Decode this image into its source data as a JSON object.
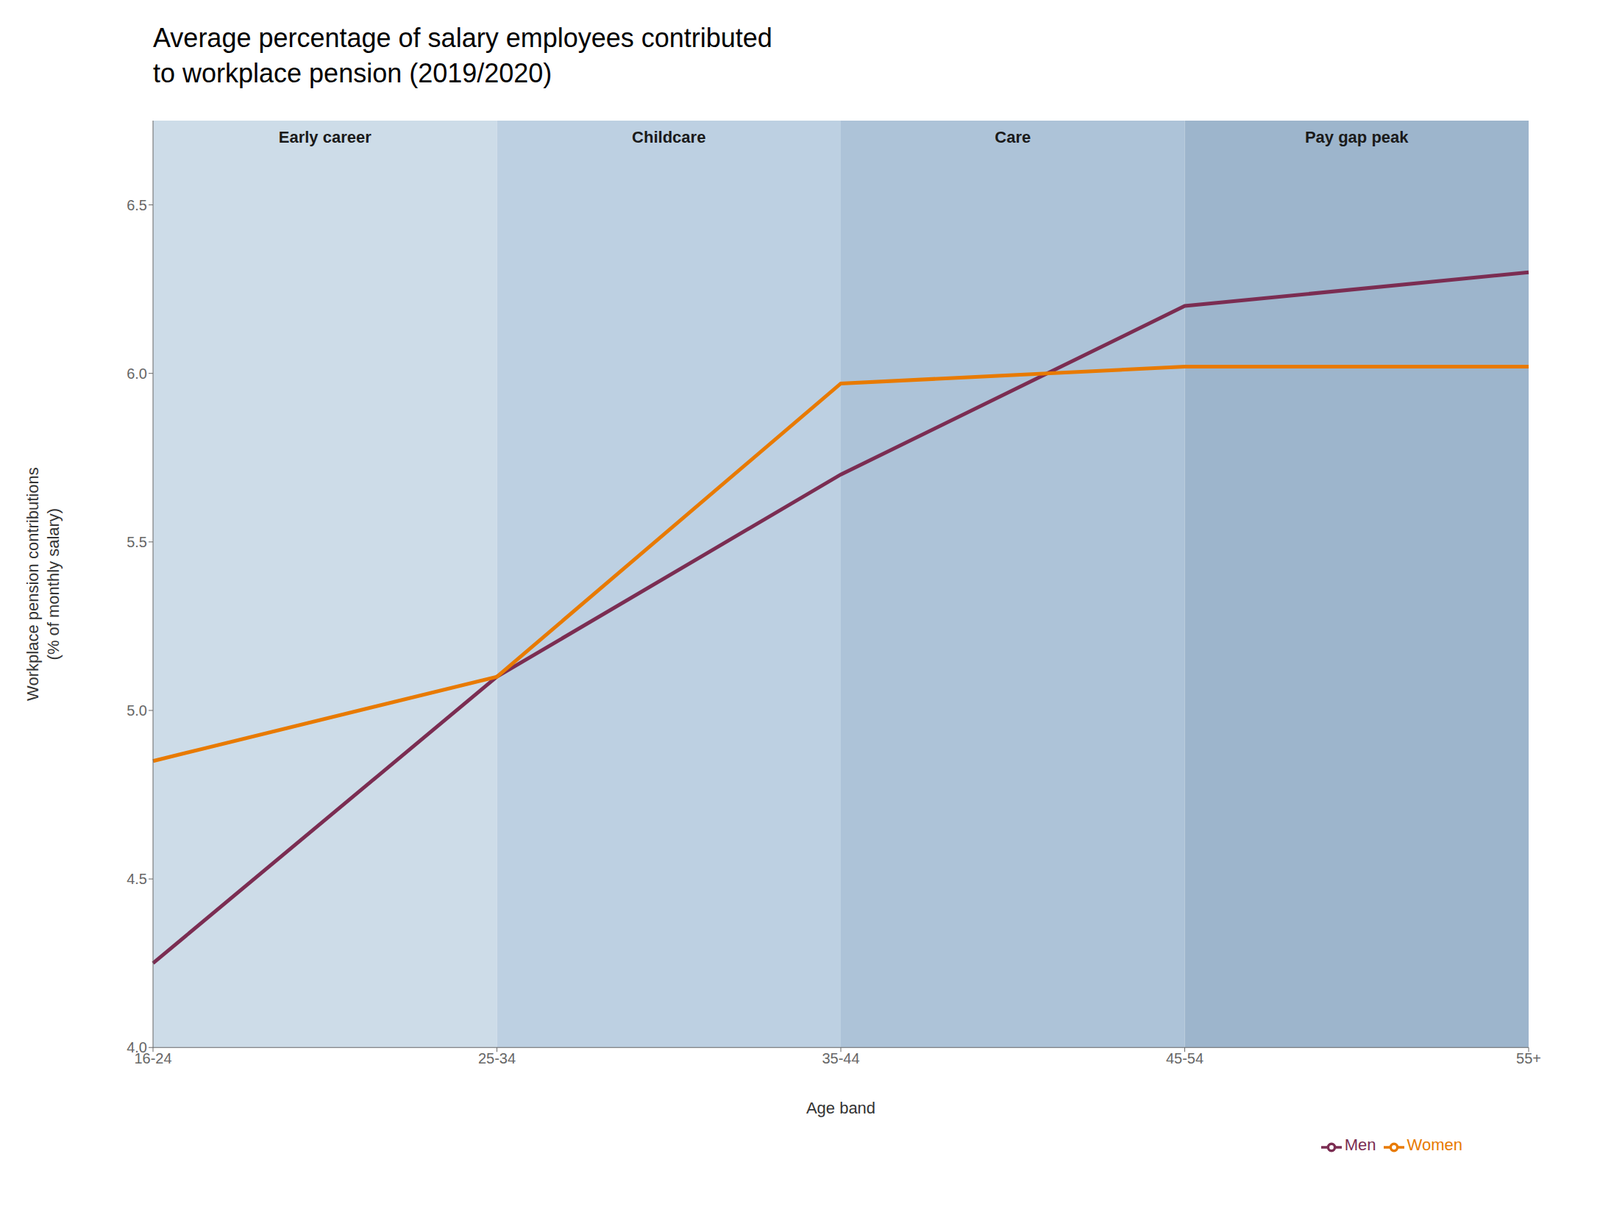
{
  "chart_data": {
    "type": "line",
    "title": "Average percentage of salary employees contributed\nto workplace pension (2019/2020)",
    "x_label": "Age band",
    "y_label": "Workplace pension contributions\n(% of monthly salary)",
    "categories": [
      "16-24",
      "25-34",
      "35-44",
      "45-54",
      "55+"
    ],
    "series": [
      {
        "name": "Men",
        "color": "#7B2D52",
        "values": [
          4.25,
          5.1,
          5.7,
          6.2,
          6.3
        ],
        "line_style": "solid",
        "marker": "none"
      },
      {
        "name": "Women",
        "color": "#E87A00",
        "values": [
          4.85,
          5.1,
          5.97,
          6.02,
          6.02
        ],
        "line_style": "solid",
        "marker": "none"
      }
    ],
    "bands": [
      {
        "label": "Early career",
        "from": "16-24",
        "to": "25-34",
        "color": "#cddce8"
      },
      {
        "label": "Childcare",
        "from": "25-34",
        "to": "35-44",
        "color": "#bdd0e2"
      },
      {
        "label": "Care",
        "from": "35-44",
        "to": "45-54",
        "color": "#adc3d8"
      },
      {
        "label": "Pay gap peak",
        "from": "45-54",
        "to": "55+",
        "color": "#9db5cc"
      }
    ],
    "ylim": [
      4.0,
      6.75
    ],
    "yticks": [
      {
        "value": 4,
        "label": "4.0"
      },
      4.5,
      {
        "value": 5,
        "label": "5.0"
      },
      5.5,
      {
        "value": 6,
        "label": "6.0"
      },
      6.5
    ],
    "grid": false,
    "legend": "bottom"
  }
}
